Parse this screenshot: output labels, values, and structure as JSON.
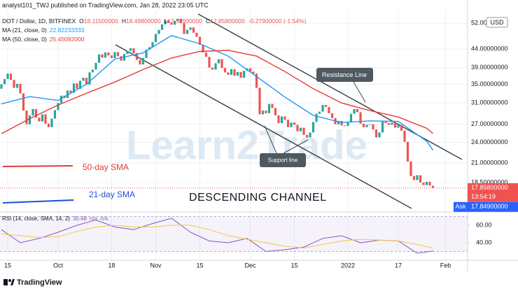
{
  "header": "analyst101_TWJ published on TradingView.com, Jan 28, 2022 23:05 UTC",
  "chart_data": {
    "type": "candlestick",
    "symbol": "DOT / Dollar, 1D, BITFINEX",
    "ohlc_legend": [
      {
        "key": "O",
        "value": "18.11500000"
      },
      {
        "key": "H",
        "value": "18.49800000"
      },
      {
        "key": "L",
        "value": "17.58900000"
      },
      {
        "key": "C",
        "value": "17.85800000"
      }
    ],
    "change": "-0.27900000 (-1.54%)",
    "currency": "USD",
    "categories": [
      "2021-09-13",
      "2021-09-14",
      "2021-09-15",
      "2021-09-16",
      "2021-09-17",
      "2021-09-18",
      "2021-09-19",
      "2021-09-20",
      "2021-09-21",
      "2021-09-22",
      "2021-09-23",
      "2021-09-24",
      "2021-09-25",
      "2021-09-26",
      "2021-09-27",
      "2021-09-28",
      "2021-09-29",
      "2021-09-30",
      "2021-10-01",
      "2021-10-02",
      "2021-10-03",
      "2021-10-04",
      "2021-10-05",
      "2021-10-06",
      "2021-10-07",
      "2021-10-08",
      "2021-10-09",
      "2021-10-10",
      "2021-10-11",
      "2021-10-12",
      "2021-10-13",
      "2021-10-14",
      "2021-10-15",
      "2021-10-16",
      "2021-10-17",
      "2021-10-18",
      "2021-10-19",
      "2021-10-20",
      "2021-10-21",
      "2021-10-22",
      "2021-10-23",
      "2021-10-24",
      "2021-10-25",
      "2021-10-26",
      "2021-10-27",
      "2021-10-28",
      "2021-10-29",
      "2021-10-30",
      "2021-10-31",
      "2021-11-01",
      "2021-11-02",
      "2021-11-03",
      "2021-11-04",
      "2021-11-05",
      "2021-11-06",
      "2021-11-07",
      "2021-11-08",
      "2021-11-09",
      "2021-11-10",
      "2021-11-11",
      "2021-11-12",
      "2021-11-13",
      "2021-11-14",
      "2021-11-15",
      "2021-11-16",
      "2021-11-17",
      "2021-11-18",
      "2021-11-19",
      "2021-11-20",
      "2021-11-21",
      "2021-11-22",
      "2021-11-23",
      "2021-11-24",
      "2021-11-25",
      "2021-11-26",
      "2021-11-27",
      "2021-11-28",
      "2021-11-29",
      "2021-11-30",
      "2021-12-01",
      "2021-12-02",
      "2021-12-03",
      "2021-12-04",
      "2021-12-05",
      "2021-12-06",
      "2021-12-07",
      "2021-12-08",
      "2021-12-09",
      "2021-12-10",
      "2021-12-11",
      "2021-12-12",
      "2021-12-13",
      "2021-12-14",
      "2021-12-15",
      "2021-12-16",
      "2021-12-17",
      "2021-12-18",
      "2021-12-19",
      "2021-12-20",
      "2021-12-21",
      "2021-12-22",
      "2021-12-23",
      "2021-12-24",
      "2021-12-25",
      "2021-12-26",
      "2021-12-27",
      "2021-12-28",
      "2021-12-29",
      "2021-12-30",
      "2021-12-31",
      "2022-01-01",
      "2022-01-02",
      "2022-01-03",
      "2022-01-04",
      "2022-01-05",
      "2022-01-06",
      "2022-01-07",
      "2022-01-08",
      "2022-01-09",
      "2022-01-10",
      "2022-01-11",
      "2022-01-12",
      "2022-01-13",
      "2022-01-14",
      "2022-01-15",
      "2022-01-16",
      "2022-01-17",
      "2022-01-18",
      "2022-01-19",
      "2022-01-20",
      "2022-01-21",
      "2022-01-22",
      "2022-01-23",
      "2022-01-24",
      "2022-01-25",
      "2022-01-26",
      "2022-01-27",
      "2022-01-28"
    ],
    "open": [
      34.0,
      35.0,
      36.2,
      37.5,
      36.0,
      34.2,
      35.1,
      33.0,
      29.5,
      27.0,
      28.6,
      29.8,
      28.2,
      27.5,
      28.8,
      27.1,
      26.5,
      28.0,
      29.6,
      31.0,
      32.5,
      32.0,
      33.6,
      33.1,
      35.2,
      34.0,
      35.8,
      36.5,
      34.9,
      37.8,
      38.5,
      40.2,
      42.5,
      41.6,
      43.0,
      42.2,
      41.5,
      43.1,
      42.0,
      40.8,
      42.6,
      43.5,
      44.2,
      42.8,
      41.0,
      39.8,
      41.5,
      43.8,
      44.5,
      46.0,
      48.5,
      49.8,
      51.6,
      53.0,
      52.2,
      51.5,
      52.8,
      53.5,
      52.0,
      48.5,
      49.8,
      50.6,
      48.9,
      47.6,
      45.2,
      43.0,
      41.8,
      39.0,
      38.5,
      40.1,
      41.2,
      38.9,
      37.8,
      37.2,
      38.6,
      37.0,
      37.9,
      36.5,
      38.2,
      38.8,
      38.0,
      37.5,
      34.2,
      28.8,
      29.5,
      29.0,
      30.8,
      30.0,
      28.6,
      27.2,
      28.4,
      27.8,
      26.5,
      27.3,
      26.9,
      25.8,
      26.4,
      25.2,
      24.8,
      25.6,
      27.4,
      28.9,
      29.3,
      30.6,
      30.2,
      29.0,
      28.1,
      27.0,
      27.6,
      26.8,
      26.7,
      27.4,
      28.9,
      29.8,
      29.2,
      27.1,
      26.5,
      26.9,
      27.0,
      26.1,
      24.8,
      25.6,
      27.5,
      27.2,
      26.9,
      27.3,
      26.4,
      26.9,
      25.9,
      24.1,
      21.2,
      19.3,
      18.8,
      19.4,
      18.5,
      18.2,
      18.6,
      18.115
    ],
    "close": [
      35.0,
      36.2,
      37.5,
      36.0,
      34.2,
      35.1,
      33.0,
      29.5,
      27.0,
      28.6,
      29.8,
      28.2,
      27.5,
      28.8,
      27.1,
      26.5,
      28.0,
      29.6,
      31.0,
      32.5,
      32.0,
      33.6,
      33.1,
      35.2,
      34.0,
      35.8,
      36.5,
      34.9,
      37.8,
      38.5,
      40.2,
      42.5,
      41.6,
      43.0,
      42.2,
      41.5,
      43.1,
      42.0,
      40.8,
      42.6,
      43.5,
      44.2,
      42.8,
      41.0,
      39.8,
      41.5,
      43.8,
      44.5,
      46.0,
      48.5,
      49.8,
      51.6,
      53.0,
      52.2,
      51.5,
      52.8,
      53.5,
      52.0,
      48.5,
      49.8,
      50.6,
      48.9,
      47.6,
      45.2,
      43.0,
      41.8,
      39.0,
      38.5,
      40.1,
      41.2,
      38.9,
      37.8,
      37.2,
      38.6,
      37.0,
      37.9,
      36.5,
      38.2,
      38.8,
      38.0,
      37.5,
      34.2,
      28.8,
      29.5,
      29.0,
      30.8,
      30.0,
      28.6,
      27.2,
      28.4,
      27.8,
      26.5,
      27.3,
      26.9,
      25.8,
      26.4,
      25.2,
      24.8,
      25.6,
      27.4,
      28.9,
      29.3,
      30.6,
      30.2,
      29.0,
      28.1,
      27.0,
      27.6,
      26.8,
      26.7,
      27.4,
      28.9,
      29.8,
      29.2,
      27.1,
      26.5,
      26.9,
      27.0,
      26.1,
      24.8,
      25.6,
      27.5,
      27.2,
      26.9,
      27.3,
      26.4,
      26.9,
      25.9,
      24.1,
      21.2,
      19.3,
      18.8,
      19.4,
      18.5,
      18.2,
      18.6,
      18.137,
      17.858
    ],
    "up_color": "#26a69a",
    "down_color": "#ef5350",
    "log_scale": true,
    "grid": true,
    "ylim": [
      15.5,
      55.2
    ],
    "yticks": [
      {
        "value": 52,
        "label": "52.00000000"
      },
      {
        "value": 44,
        "label": "44.00000000"
      },
      {
        "value": 39,
        "label": "39.00000000"
      },
      {
        "value": 35,
        "label": "35.00000000"
      },
      {
        "value": 31,
        "label": "31.00000000"
      },
      {
        "value": 27,
        "label": "27.00000000"
      },
      {
        "value": 24,
        "label": "24.00000000"
      },
      {
        "value": 21,
        "label": "21.00000000"
      },
      {
        "value": 18.5,
        "label": "18.50000000"
      }
    ],
    "xticks": [
      {
        "value": "2021-09-15",
        "label": "15"
      },
      {
        "value": "2021-10-01",
        "label": "Oct"
      },
      {
        "value": "2021-10-18",
        "label": "18"
      },
      {
        "value": "2021-11-01",
        "label": "Nov"
      },
      {
        "value": "2021-11-15",
        "label": "15"
      },
      {
        "value": "2021-12-01",
        "label": "Dec"
      },
      {
        "value": "2021-12-15",
        "label": "15"
      },
      {
        "value": "2022-01-01",
        "label": "2022"
      },
      {
        "value": "2022-01-17",
        "label": "17"
      },
      {
        "value": "2022-02-01",
        "label": "Feb"
      }
    ],
    "moving_averages": [
      {
        "name": "MA (21, close, 0)",
        "value_label": "22.82233333",
        "color": "#2196f3",
        "x": [
          "2021-09-13",
          "2021-09-22",
          "2021-10-01",
          "2021-10-10",
          "2021-10-19",
          "2021-10-28",
          "2021-11-06",
          "2021-11-15",
          "2021-11-24",
          "2021-12-03",
          "2021-12-12",
          "2021-12-21",
          "2021-12-30",
          "2022-01-08",
          "2022-01-17",
          "2022-01-26",
          "2022-01-28"
        ],
        "values": [
          30.8,
          32.3,
          31.5,
          35.0,
          41.2,
          42.9,
          48.0,
          45.5,
          42.0,
          36.8,
          32.2,
          28.6,
          27.3,
          27.6,
          27.5,
          24.2,
          22.82233333
        ]
      },
      {
        "name": "MA (50, close, 0)",
        "value_label": "25.45092000",
        "color": "#e53935",
        "x": [
          "2021-09-13",
          "2021-09-22",
          "2021-10-01",
          "2021-10-10",
          "2021-10-19",
          "2021-10-28",
          "2021-11-06",
          "2021-11-15",
          "2021-11-24",
          "2021-12-03",
          "2021-12-12",
          "2021-12-21",
          "2021-12-30",
          "2022-01-08",
          "2022-01-17",
          "2022-01-26",
          "2022-01-28"
        ],
        "values": [
          25.4,
          28.0,
          30.6,
          33.0,
          35.5,
          38.5,
          41.5,
          43.3,
          43.6,
          42.0,
          38.0,
          34.0,
          31.0,
          29.5,
          28.3,
          26.3,
          25.45092
        ]
      }
    ],
    "last_price": 17.858,
    "last_price_label": "17.85800000",
    "countdown": "13:54:19",
    "ask_name": "Ask",
    "ask_price": 17.849,
    "ask_label": "17.84900000",
    "annotations": {
      "resistance": "Resistance Line",
      "support": "Support line",
      "sma50": "50-day SMA",
      "sma21": "21-day SMA",
      "channel": "DESCENDING CHANNEL",
      "watermark": "Learn2Trade"
    },
    "rsi": {
      "name": "RSI (14, close, SMA, 14, 2)",
      "value_label": "30.48",
      "extra": [
        "n/a",
        "n/a"
      ],
      "ylim": [
        20,
        73.6
      ],
      "yticks": [
        {
          "value": 60,
          "label": "60.00"
        },
        {
          "value": 40,
          "label": "40.00"
        }
      ],
      "band": [
        30,
        70
      ],
      "x": [
        "2021-09-13",
        "2021-09-19",
        "2021-09-25",
        "2021-10-01",
        "2021-10-07",
        "2021-10-13",
        "2021-10-19",
        "2021-10-25",
        "2021-10-31",
        "2021-11-06",
        "2021-11-12",
        "2021-11-18",
        "2021-11-24",
        "2021-11-30",
        "2021-12-06",
        "2021-12-12",
        "2021-12-18",
        "2021-12-24",
        "2021-12-30",
        "2022-01-05",
        "2022-01-11",
        "2022-01-17",
        "2022-01-23",
        "2022-01-28"
      ],
      "series": [
        {
          "color": "#7e57c2",
          "values": [
            55,
            40,
            45,
            52,
            60,
            66,
            58,
            55,
            62,
            68,
            52,
            42,
            40,
            45,
            30,
            32,
            35,
            45,
            48,
            40,
            43,
            42,
            28,
            30.48
          ]
        },
        {
          "color": "#f5c542",
          "values": [
            50,
            48,
            46,
            47,
            53,
            58,
            60,
            58,
            58,
            60,
            60,
            55,
            48,
            44,
            40,
            36,
            34,
            38,
            42,
            44,
            43,
            42,
            38,
            34
          ]
        }
      ]
    }
  },
  "footer": "TradingView"
}
